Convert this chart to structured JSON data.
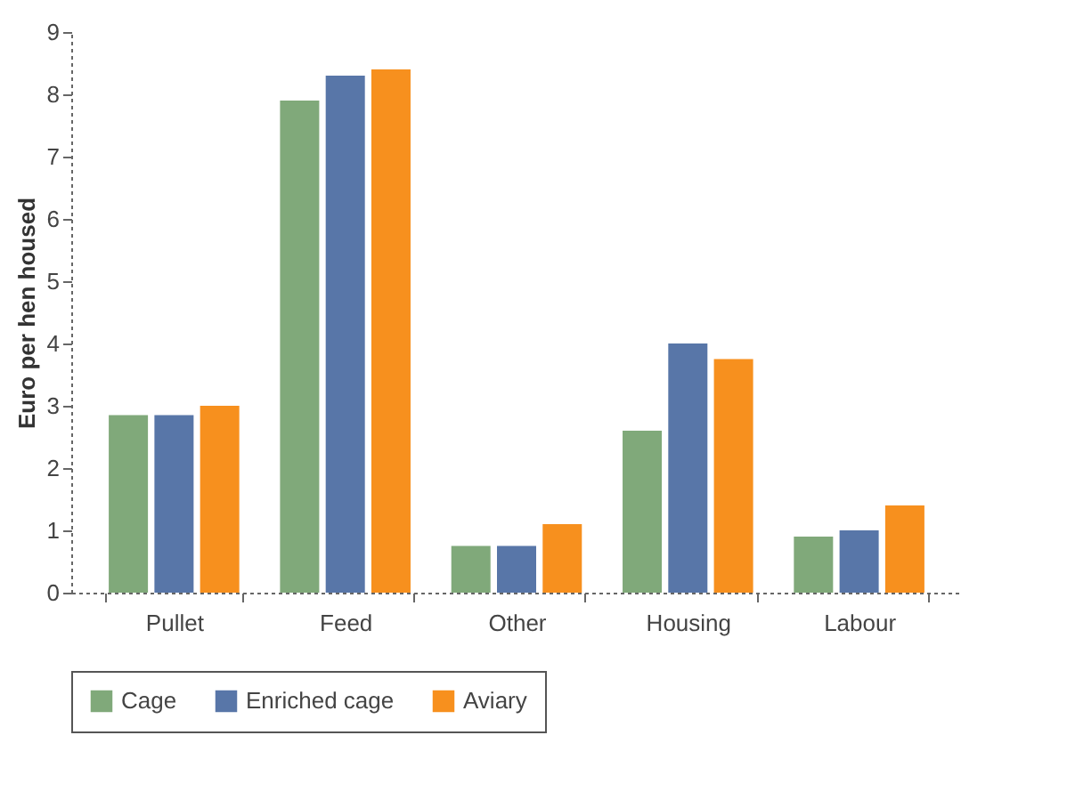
{
  "chart_data": {
    "type": "bar",
    "ylabel": "Euro per hen housed",
    "categories": [
      "Pullet",
      "Feed",
      "Other",
      "Housing",
      "Labour"
    ],
    "series": [
      {
        "name": "Cage",
        "color": "#80a97a",
        "values": [
          2.85,
          7.9,
          0.75,
          2.6,
          0.9
        ]
      },
      {
        "name": "Enriched cage",
        "color": "#5876a8",
        "values": [
          2.85,
          8.3,
          0.75,
          4.0,
          1.0
        ]
      },
      {
        "name": "Aviary",
        "color": "#f7901e",
        "values": [
          3.0,
          8.4,
          1.1,
          3.75,
          1.4
        ]
      }
    ],
    "ylim": [
      0,
      9
    ],
    "yticks": [
      0,
      1,
      2,
      3,
      4,
      5,
      6,
      7,
      8,
      9
    ],
    "grid": false,
    "legend": "bottom left"
  }
}
